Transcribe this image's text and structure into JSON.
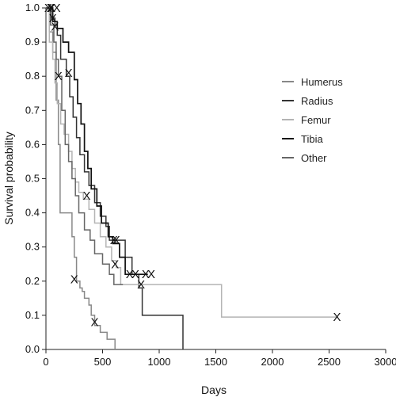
{
  "chart_data": {
    "type": "line",
    "step": true,
    "xlabel": "Days",
    "ylabel": "Survival probability",
    "xlim": [
      0,
      3000
    ],
    "ylim": [
      0,
      1.0
    ],
    "x_ticks": [
      0,
      500,
      1000,
      1500,
      2000,
      2500,
      3000
    ],
    "y_ticks": [
      0.0,
      0.1,
      0.2,
      0.3,
      0.4,
      0.5,
      0.6,
      0.7,
      0.8,
      0.9,
      1.0
    ],
    "y_tick_labels": [
      "0.0",
      "0.1",
      "0.2",
      "0.3",
      "0.4",
      "0.5",
      "0.6",
      "0.7",
      "0.8",
      "0.9",
      "1.0"
    ],
    "grid": false,
    "legend_position": "right",
    "censor_marker": "X",
    "series": [
      {
        "name": "Humerus",
        "color": "#888888",
        "width": 1.5,
        "points": [
          [
            0,
            1.0
          ],
          [
            30,
            0.93
          ],
          [
            60,
            0.87
          ],
          [
            90,
            0.73
          ],
          [
            110,
            0.6
          ],
          [
            125,
            0.4
          ],
          [
            230,
            0.33
          ],
          [
            250,
            0.27
          ],
          [
            270,
            0.2
          ],
          [
            300,
            0.18
          ],
          [
            320,
            0.17
          ],
          [
            340,
            0.15
          ],
          [
            380,
            0.13
          ],
          [
            400,
            0.1
          ],
          [
            430,
            0.07
          ],
          [
            480,
            0.05
          ],
          [
            540,
            0.03
          ],
          [
            610,
            0.0
          ]
        ],
        "censored": [
          [
            250,
            0.205
          ],
          [
            430,
            0.08
          ]
        ]
      },
      {
        "name": "Radius",
        "color": "#333333",
        "width": 1.5,
        "points": [
          [
            0,
            1.0
          ],
          [
            45,
            0.97
          ],
          [
            80,
            0.95
          ],
          [
            100,
            0.92
          ],
          [
            130,
            0.85
          ],
          [
            180,
            0.8
          ],
          [
            210,
            0.74
          ],
          [
            240,
            0.68
          ],
          [
            270,
            0.62
          ],
          [
            300,
            0.57
          ],
          [
            340,
            0.52
          ],
          [
            380,
            0.48
          ],
          [
            430,
            0.43
          ],
          [
            480,
            0.39
          ],
          [
            530,
            0.36
          ],
          [
            560,
            0.32
          ],
          [
            700,
            0.27
          ],
          [
            760,
            0.22
          ],
          [
            820,
            0.18
          ],
          [
            850,
            0.1
          ],
          [
            1210,
            0.0
          ]
        ],
        "censored": [
          [
            20,
            1.0
          ],
          [
            50,
            1.0
          ],
          [
            80,
            0.945
          ],
          [
            600,
            0.32
          ],
          [
            840,
            0.19
          ]
        ]
      },
      {
        "name": "Femur",
        "color": "#b4b4b4",
        "width": 1.5,
        "points": [
          [
            0,
            1.0
          ],
          [
            30,
            0.9
          ],
          [
            60,
            0.85
          ],
          [
            80,
            0.78
          ],
          [
            100,
            0.72
          ],
          [
            130,
            0.66
          ],
          [
            160,
            0.63
          ],
          [
            200,
            0.58
          ],
          [
            230,
            0.53
          ],
          [
            260,
            0.49
          ],
          [
            290,
            0.46
          ],
          [
            330,
            0.44
          ],
          [
            380,
            0.41
          ],
          [
            430,
            0.37
          ],
          [
            480,
            0.33
          ],
          [
            530,
            0.3
          ],
          [
            580,
            0.26
          ],
          [
            620,
            0.24
          ],
          [
            660,
            0.19
          ],
          [
            1550,
            0.095
          ],
          [
            2580,
            0.095
          ]
        ],
        "censored": [
          [
            2570,
            0.095
          ]
        ]
      },
      {
        "name": "Tibia",
        "color": "#111111",
        "width": 1.7,
        "points": [
          [
            0,
            1.0
          ],
          [
            60,
            0.96
          ],
          [
            100,
            0.94
          ],
          [
            150,
            0.9
          ],
          [
            200,
            0.87
          ],
          [
            250,
            0.79
          ],
          [
            280,
            0.72
          ],
          [
            310,
            0.66
          ],
          [
            340,
            0.58
          ],
          [
            370,
            0.53
          ],
          [
            400,
            0.47
          ],
          [
            450,
            0.42
          ],
          [
            490,
            0.37
          ],
          [
            550,
            0.33
          ],
          [
            590,
            0.31
          ],
          [
            650,
            0.27
          ],
          [
            700,
            0.22
          ],
          [
            900,
            0.22
          ]
        ],
        "censored": [
          [
            40,
            1.0
          ],
          [
            95,
            1.0
          ],
          [
            200,
            0.81
          ],
          [
            360,
            0.45
          ],
          [
            620,
            0.32
          ],
          [
            740,
            0.22
          ],
          [
            790,
            0.22
          ],
          [
            880,
            0.22
          ],
          [
            930,
            0.22
          ]
        ]
      },
      {
        "name": "Other",
        "color": "#666666",
        "width": 1.5,
        "points": [
          [
            0,
            1.0
          ],
          [
            40,
            0.95
          ],
          [
            70,
            0.9
          ],
          [
            90,
            0.85
          ],
          [
            110,
            0.8
          ],
          [
            140,
            0.7
          ],
          [
            170,
            0.6
          ],
          [
            200,
            0.55
          ],
          [
            230,
            0.5
          ],
          [
            260,
            0.45
          ],
          [
            290,
            0.4
          ],
          [
            340,
            0.35
          ],
          [
            390,
            0.32
          ],
          [
            430,
            0.28
          ],
          [
            500,
            0.25
          ],
          [
            560,
            0.22
          ],
          [
            600,
            0.19
          ],
          [
            680,
            0.19
          ]
        ],
        "censored": [
          [
            60,
            0.97
          ],
          [
            110,
            0.8
          ],
          [
            610,
            0.25
          ]
        ]
      }
    ]
  }
}
